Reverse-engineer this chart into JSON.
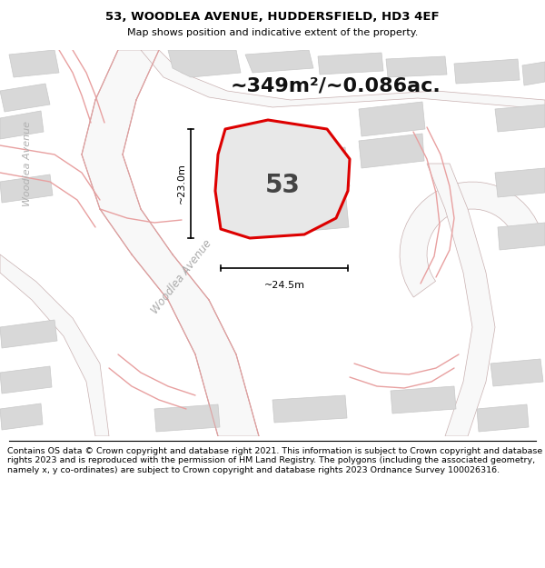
{
  "title": "53, WOODLEA AVENUE, HUDDERSFIELD, HD3 4EF",
  "subtitle": "Map shows position and indicative extent of the property.",
  "area_label": "~349m²/~0.086ac.",
  "plot_number": "53",
  "dim_vertical": "~23.0m",
  "dim_horizontal": "~24.5m",
  "street_label_diagonal": "Woodlea Avenue",
  "street_label_vertical": "Woodlea Avenue",
  "footer_text": "Contains OS data © Crown copyright and database right 2021. This information is subject to Crown copyright and database rights 2023 and is reproduced with the permission of HM Land Registry. The polygons (including the associated geometry, namely x, y co-ordinates) are subject to Crown copyright and database rights 2023 Ordnance Survey 100026316.",
  "bg_color": "#f0f0f0",
  "plot_outline_color": "#dd0000",
  "plot_fill_color": "#e8e8e8",
  "building_fill": "#d8d8d8",
  "building_edge": "#c8c8c8",
  "road_fill": "#f8f8f8",
  "road_edge": "#c8b0b0",
  "road_line_color": "#e0b0b0",
  "text_color": "#000000",
  "gray_text_color": "#999999",
  "title_fontsize": 9.5,
  "subtitle_fontsize": 8,
  "area_fontsize": 16,
  "plot_num_fontsize": 20,
  "street_fontsize": 8.5,
  "dim_fontsize": 7.5,
  "footer_fontsize": 6.8
}
